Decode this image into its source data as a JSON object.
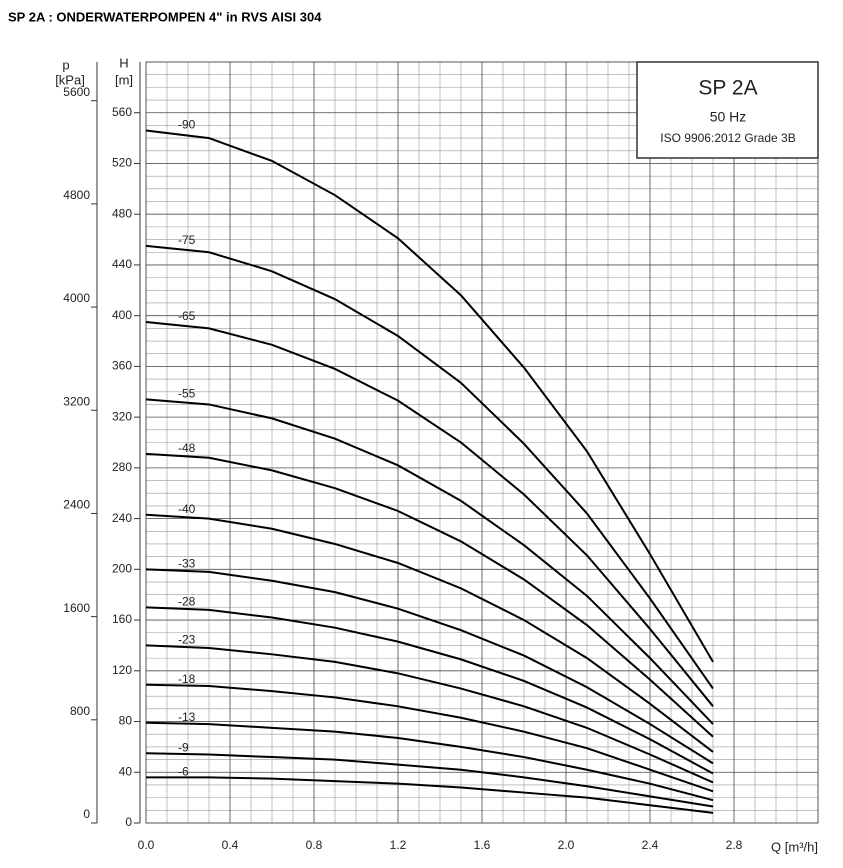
{
  "chart_data": {
    "type": "line",
    "title": "SP 2A : ONDERWATERPOMPEN 4\" in RVS AISI 304",
    "box": {
      "model": "SP 2A",
      "frequency": "50 Hz",
      "standard": "ISO 9906:2012 Grade 3B"
    },
    "xlabel": "Q [m³/h]",
    "ylabel": [
      "H",
      "[m]"
    ],
    "y2label": [
      "p",
      "[kPa]"
    ],
    "x": [
      0,
      0.3,
      0.6,
      0.9,
      1.2,
      1.5,
      1.8,
      2.1,
      2.4,
      2.7
    ],
    "xlim": [
      0,
      3.2
    ],
    "xticks": [
      {
        "value": 0,
        "label": "0.0"
      },
      0.4,
      0.8,
      1.2,
      1.6,
      {
        "value": 2,
        "label": "2.0"
      },
      2.4,
      2.8
    ],
    "ylim": [
      0,
      600
    ],
    "yticks": [
      0,
      40,
      80,
      120,
      160,
      200,
      240,
      280,
      320,
      360,
      400,
      440,
      480,
      520,
      560
    ],
    "y2lim": [
      0,
      5900
    ],
    "y2ticks": [
      0,
      800,
      1600,
      2400,
      3200,
      4000,
      4800,
      5600
    ],
    "grid": true,
    "series": [
      {
        "name": "-90",
        "color": "#000000",
        "values": [
          546,
          540,
          522,
          495,
          461,
          416,
          359,
          293,
          212,
          127
        ]
      },
      {
        "name": "-75",
        "color": "#000000",
        "values": [
          455,
          450,
          435,
          413,
          384,
          347,
          299,
          244,
          177,
          106
        ]
      },
      {
        "name": "-65",
        "color": "#000000",
        "values": [
          395,
          390,
          377,
          358,
          333,
          300,
          259,
          211,
          153,
          92
        ]
      },
      {
        "name": "-55",
        "color": "#000000",
        "values": [
          334,
          330,
          319,
          303,
          282,
          254,
          219,
          179,
          130,
          78
        ]
      },
      {
        "name": "-48",
        "color": "#000000",
        "values": [
          291,
          288,
          278,
          264,
          246,
          222,
          192,
          156,
          113,
          68
        ]
      },
      {
        "name": "-40",
        "color": "#000000",
        "values": [
          243,
          240,
          232,
          220,
          205,
          185,
          160,
          130,
          94,
          56
        ]
      },
      {
        "name": "-33",
        "color": "#000000",
        "values": [
          200,
          198,
          191,
          182,
          169,
          152,
          132,
          107,
          78,
          47
        ]
      },
      {
        "name": "-28",
        "color": "#000000",
        "values": [
          170,
          168,
          162,
          154,
          143,
          129,
          112,
          91,
          66,
          39
        ]
      },
      {
        "name": "-23",
        "color": "#000000",
        "values": [
          140,
          138,
          133,
          127,
          118,
          106,
          92,
          75,
          54,
          32
        ]
      },
      {
        "name": "-18",
        "color": "#000000",
        "values": [
          109,
          108,
          104,
          99,
          92,
          83,
          72,
          59,
          42,
          25
        ]
      },
      {
        "name": "-13",
        "color": "#000000",
        "values": [
          79,
          78,
          75,
          72,
          67,
          60,
          52,
          42,
          31,
          18
        ]
      },
      {
        "name": "-9",
        "color": "#000000",
        "values": [
          55,
          54,
          52,
          50,
          46,
          42,
          36,
          29,
          21,
          13
        ]
      },
      {
        "name": "-6",
        "color": "#000000",
        "values": [
          36,
          36,
          35,
          33,
          31,
          28,
          24,
          20,
          14,
          8
        ]
      }
    ]
  }
}
